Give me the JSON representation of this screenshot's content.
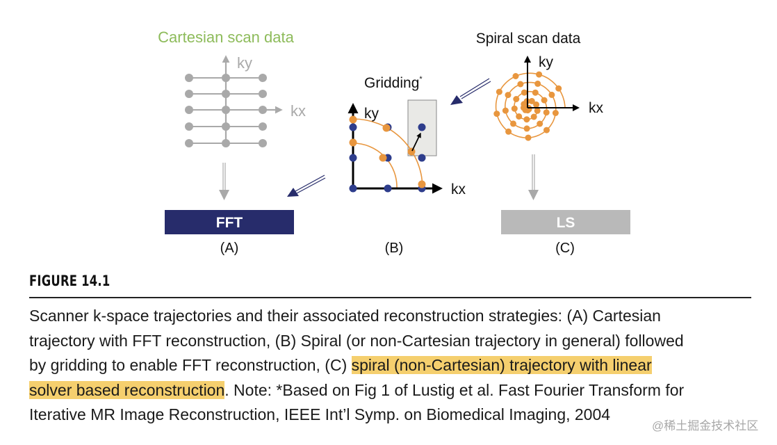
{
  "figure": {
    "panel_a": {
      "title": "Cartesian scan data",
      "ky": "ky",
      "kx": "kx",
      "box_label": "FFT",
      "label": "(A)"
    },
    "panel_b": {
      "title": "Gridding",
      "title_mark": "*",
      "ky": "ky",
      "kx": "kx",
      "label": "(B)"
    },
    "panel_c": {
      "title": "Spiral scan data",
      "ky": "ky",
      "kx": "kx",
      "box_label": "LS",
      "label": "(C)"
    },
    "colors": {
      "cartesian_title": "#8dbb5a",
      "fft_box": "#272c6b",
      "ls_box": "#b9b9b9",
      "orange": "#e8963e",
      "blue": "#2e3d8c",
      "gray": "#a9a9a9",
      "highlight": "#f5cf6e"
    }
  },
  "caption": {
    "figure_label": "FIGURE 14.1",
    "line1": "Scanner k-space trajectories and their associated reconstruction strategies: (A) Cartesian",
    "line2": "trajectory with FFT reconstruction, (B) Spiral (or non-Cartesian trajectory in general) followed",
    "line3_plain": "by gridding to enable FFT reconstruction, (C) ",
    "line3_highlight": "spiral (non-Cartesian) trajectory with linear",
    "line4_highlight": "solver based reconstruction",
    "line4_plain": ". Note: *Based on Fig 1 of Lustig et al. Fast Fourier Transform for",
    "line5": "Iterative MR Image Reconstruction, IEEE Int’l Symp. on Biomedical Imaging, 2004"
  },
  "watermark": "@稀土掘金技术社区"
}
